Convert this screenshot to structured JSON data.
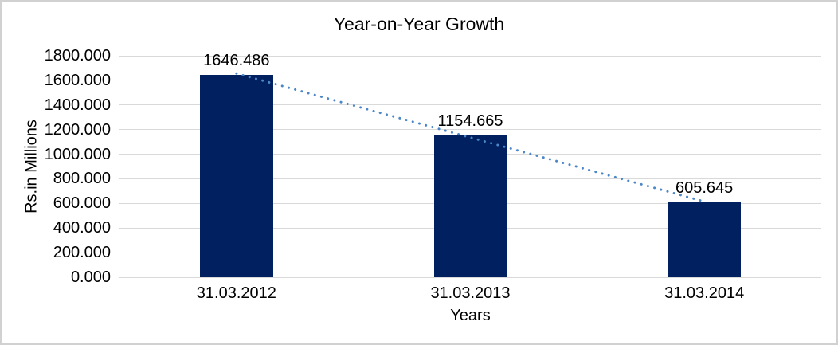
{
  "chart_data": {
    "type": "bar",
    "title": "Year-on-Year Growth",
    "xlabel": "Years",
    "ylabel": "Rs.in Millions",
    "categories": [
      "31.03.2012",
      "31.03.2013",
      "31.03.2014"
    ],
    "values": [
      1646.486,
      1154.665,
      605.645
    ],
    "data_labels": [
      "1646.486",
      "1154.665",
      "605.645"
    ],
    "ylim": [
      0,
      1800
    ],
    "ytick_step": 200,
    "ytick_labels": [
      "0.000",
      "200.000",
      "400.000",
      "600.000",
      "800.000",
      "1000.000",
      "1200.000",
      "1400.000",
      "1600.000",
      "1800.000"
    ],
    "grid": true,
    "legend_position": "none",
    "bar_color": "#002060",
    "gridline_color": "#d9d9d9",
    "trendline": {
      "type": "linear",
      "style": "dotted",
      "color": "#4a86c8"
    }
  }
}
